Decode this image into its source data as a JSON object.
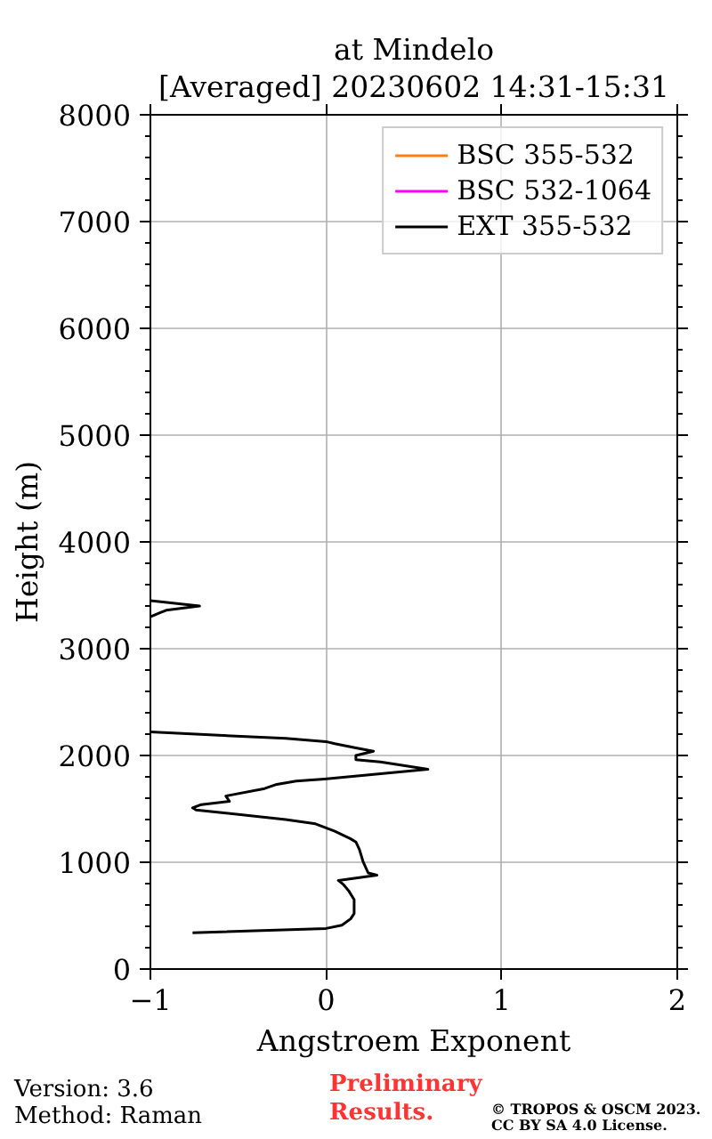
{
  "chart_data": {
    "type": "line",
    "title": "at Mindelo",
    "subtitle": "[Averaged] 20230602 14:31-15:31",
    "xlabel": "Angstroem Exponent",
    "ylabel": "Height (m)",
    "xlim": [
      -1,
      2
    ],
    "ylim": [
      0,
      8000
    ],
    "xticks": [
      {
        "value": -1,
        "label": "−1"
      },
      0,
      1,
      2
    ],
    "yticks": [
      0,
      {
        "value": 200,
        "label": null
      },
      {
        "value": 400,
        "label": null
      },
      {
        "value": 600,
        "label": null
      },
      {
        "value": 800,
        "label": null
      },
      1000,
      {
        "value": 1200,
        "label": null
      },
      {
        "value": 1400,
        "label": null
      },
      {
        "value": 1600,
        "label": null
      },
      {
        "value": 1800,
        "label": null
      },
      2000,
      {
        "value": 2200,
        "label": null
      },
      {
        "value": 2400,
        "label": null
      },
      {
        "value": 2600,
        "label": null
      },
      {
        "value": 2800,
        "label": null
      },
      3000,
      {
        "value": 3200,
        "label": null
      },
      {
        "value": 3400,
        "label": null
      },
      {
        "value": 3600,
        "label": null
      },
      {
        "value": 3800,
        "label": null
      },
      4000,
      {
        "value": 4200,
        "label": null
      },
      {
        "value": 4400,
        "label": null
      },
      {
        "value": 4600,
        "label": null
      },
      {
        "value": 4800,
        "label": null
      },
      5000,
      {
        "value": 5200,
        "label": null
      },
      {
        "value": 5400,
        "label": null
      },
      {
        "value": 5600,
        "label": null
      },
      {
        "value": 5800,
        "label": null
      },
      6000,
      {
        "value": 6200,
        "label": null
      },
      {
        "value": 6400,
        "label": null
      },
      {
        "value": 6600,
        "label": null
      },
      {
        "value": 6800,
        "label": null
      },
      7000,
      {
        "value": 7200,
        "label": null
      },
      {
        "value": 7400,
        "label": null
      },
      {
        "value": 7600,
        "label": null
      },
      {
        "value": 7800,
        "label": null
      },
      8000
    ],
    "grid": true,
    "legend": "top right",
    "series": [
      {
        "name": "BSC 355-532",
        "color": "#ff7f0e"
      },
      {
        "name": "BSC 532-1064",
        "color": "#ff00ff"
      },
      {
        "name": "EXT 355-532",
        "color": "#000000",
        "x": [
          -0.76,
          0.0,
          0.09,
          0.14,
          0.16,
          0.16,
          0.13,
          0.1,
          0.07,
          0.29,
          0.24,
          0.21,
          0.19,
          0.17,
          0.14,
          0.05,
          -0.06,
          -0.23,
          -0.57,
          -0.74,
          -0.76,
          -0.71,
          -0.55,
          -0.57,
          -0.54,
          -0.35,
          -0.28,
          -0.17,
          -0.01,
          0.58,
          0.31,
          0.17,
          0.17,
          0.27,
          0.17,
          0.05,
          0.0,
          -0.23,
          -1.0,
          null,
          -1.0,
          -0.94,
          -0.91,
          -0.72,
          -1.0
        ],
        "values": [
          340,
          380,
          410,
          470,
          520,
          650,
          730,
          790,
          830,
          880,
          900,
          1010,
          1120,
          1190,
          1220,
          1290,
          1360,
          1400,
          1460,
          1490,
          1510,
          1540,
          1570,
          1620,
          1630,
          1690,
          1730,
          1760,
          1780,
          1870,
          1940,
          1960,
          2000,
          2040,
          2070,
          2110,
          2130,
          2160,
          2220,
          null,
          3300,
          3340,
          3360,
          3400,
          3450
        ]
      }
    ],
    "annotations": [
      "Version: 3.6\nMethod: Raman",
      "Preliminary\nResults.",
      "© TROPOS & OSCM 2023.\nCC BY SA 4.0 License."
    ]
  }
}
